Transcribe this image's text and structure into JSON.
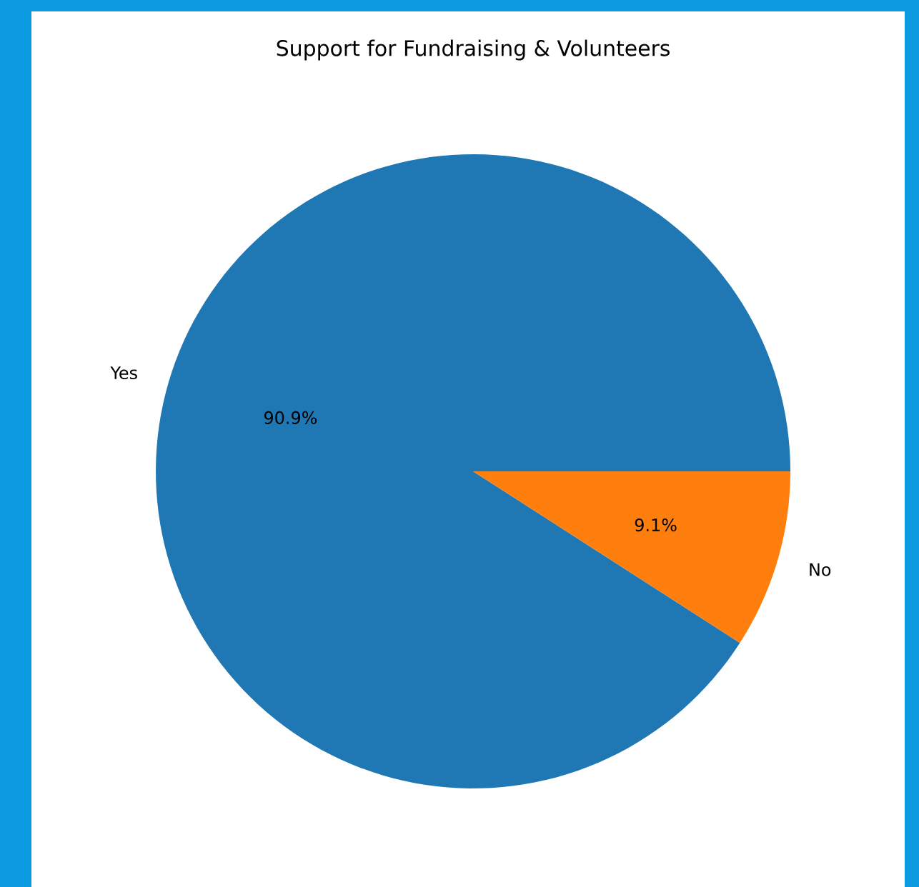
{
  "chart_data": {
    "type": "pie",
    "title": "Support for Fundraising & Volunteers",
    "categories": [
      "Yes",
      "No"
    ],
    "values": [
      90.9,
      9.1
    ],
    "colors": [
      "#1f77b4",
      "#ff7f0e"
    ],
    "value_labels": [
      "90.9%",
      "9.1%"
    ]
  }
}
